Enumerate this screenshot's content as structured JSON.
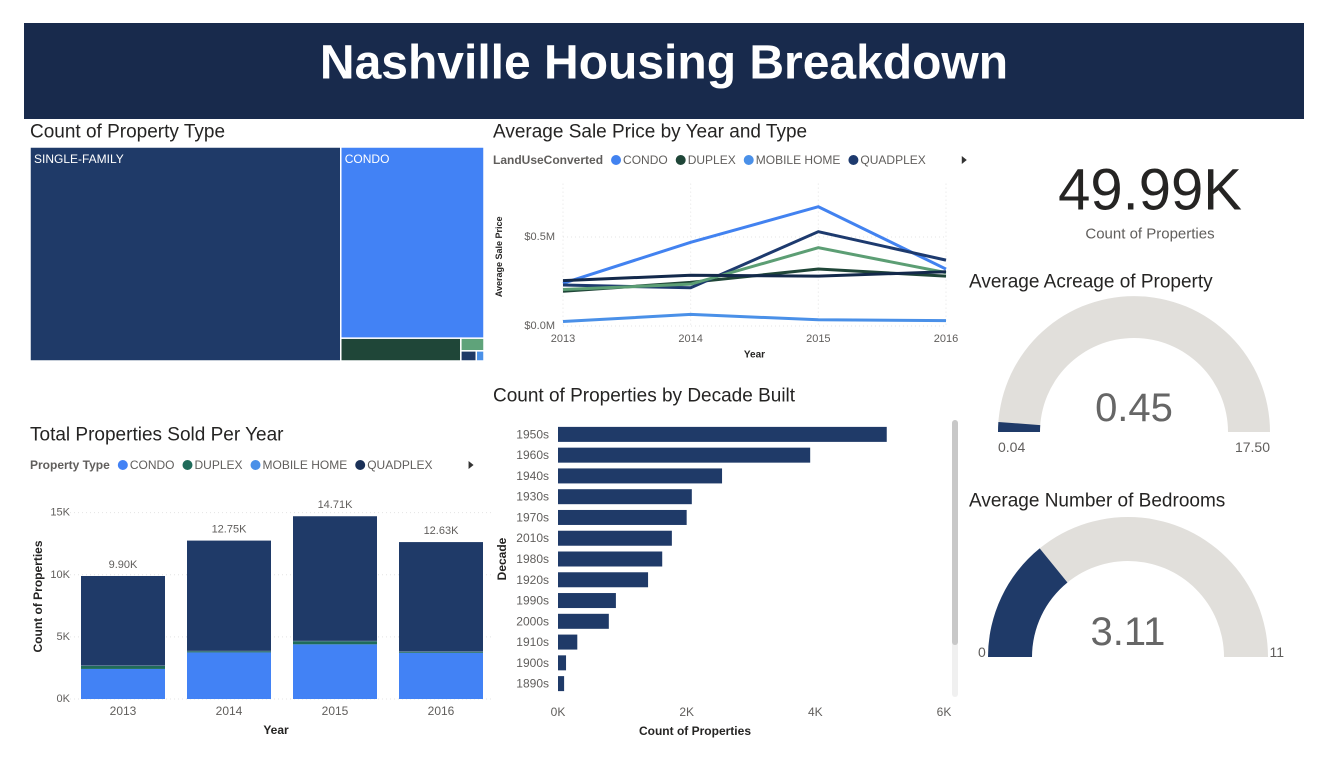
{
  "title": "Nashville Housing Breakdown",
  "chart_data": [
    {
      "type": "treemap",
      "title": "Count of Property Type",
      "categories": [
        "SINGLE-FAMILY",
        "CONDO",
        null,
        null,
        null,
        null
      ],
      "values": [
        34000,
        14000,
        1400,
        150,
        80,
        40
      ],
      "colors": [
        "#1f3a68",
        "#4282f5",
        "#1f4638",
        "#5fa37a",
        "#1f3a68",
        "#4a90e8"
      ]
    },
    {
      "type": "line",
      "title": "Average Sale Price by Year and Type",
      "legend_title": "LandUseConverted",
      "x": [
        2013,
        2014,
        2015,
        2016
      ],
      "xlim": [
        2013,
        2016
      ],
      "xticks": [
        2013,
        2014,
        2015,
        2016
      ],
      "ylim": [
        0,
        800000
      ],
      "yticks": [
        {
          "value": 0,
          "label": "$0.0M"
        },
        {
          "value": 500000,
          "label": "$0.5M"
        }
      ],
      "xlabel": "Year",
      "ylabel": "Average Sale Price",
      "grid": true,
      "series": [
        {
          "name": "CONDO",
          "color": "#4282f0",
          "values": [
            240000,
            470000,
            670000,
            320000
          ]
        },
        {
          "name": "DUPLEX",
          "color": "#1f4638",
          "values": [
            195000,
            245000,
            320000,
            280000
          ]
        },
        {
          "name": "MOBILE HOME",
          "color": "#4a90e8",
          "values": [
            25000,
            65000,
            35000,
            30000
          ]
        },
        {
          "name": "QUADPLEX",
          "color": "#1d3a6e",
          "values": [
            230000,
            215000,
            530000,
            370000
          ]
        },
        {
          "name": null,
          "color": "#5c9e74",
          "values": [
            205000,
            235000,
            440000,
            300000
          ]
        },
        {
          "name": null,
          "color": "#13294b",
          "values": [
            255000,
            285000,
            280000,
            305000
          ]
        }
      ]
    },
    {
      "type": "bar",
      "stacked": true,
      "title": "Total Properties Sold Per Year",
      "legend_title": "Property Type",
      "categories": [
        "2013",
        "2014",
        "2015",
        "2016"
      ],
      "ylim": [
        0,
        16500
      ],
      "yticks": [
        {
          "value": 0,
          "label": "0K"
        },
        {
          "value": 5000,
          "label": "5K"
        },
        {
          "value": 10000,
          "label": "10K"
        },
        {
          "value": 15000,
          "label": "15K"
        }
      ],
      "xlabel": "Year",
      "ylabel": "Count of Properties",
      "grid": true,
      "series": [
        {
          "name": "CONDO",
          "color": "#4282f5",
          "values": [
            2420,
            3750,
            4400,
            3720
          ]
        },
        {
          "name": "DUPLEX",
          "color": "#1f6b5a",
          "values": [
            250,
            90,
            250,
            80
          ]
        },
        {
          "name": "MOBILE HOME",
          "color": "#4a90e8",
          "values": [
            10,
            10,
            10,
            10
          ]
        },
        {
          "name": "QUADPLEX",
          "color": "#1b3158",
          "values": [
            30,
            30,
            30,
            30
          ]
        },
        {
          "name": null,
          "color": "#1f3a68",
          "values": [
            7190,
            8870,
            10020,
            8790
          ]
        }
      ],
      "totals": [
        9900,
        12750,
        14710,
        12630
      ],
      "total_labels": [
        "9.90K",
        "12.75K",
        "14.71K",
        "12.63K"
      ]
    },
    {
      "type": "bar",
      "horizontal": true,
      "title": "Count of Properties by Decade Built",
      "color": "#1f3a68",
      "categories": [
        "1950s",
        "1960s",
        "1940s",
        "1930s",
        "1970s",
        "2010s",
        "1980s",
        "1920s",
        "1990s",
        "2000s",
        "1910s",
        "1900s",
        "1890s"
      ],
      "values": [
        5110,
        3920,
        2550,
        2080,
        2000,
        1770,
        1620,
        1400,
        900,
        790,
        300,
        125,
        95
      ],
      "xlim": [
        0,
        6000
      ],
      "xticks": [
        {
          "value": 0,
          "label": "0K"
        },
        {
          "value": 2000,
          "label": "2K"
        },
        {
          "value": 4000,
          "label": "4K"
        },
        {
          "value": 6000,
          "label": "6K"
        }
      ],
      "xlabel": "Count of Properties",
      "ylabel": "Decade"
    },
    {
      "type": "card",
      "value": 49990,
      "value_label": "49.99K",
      "label": "Count of Properties"
    },
    {
      "type": "gauge",
      "title": "Average Acreage of Property",
      "value": 0.45,
      "ylim": [
        0.04,
        17.5
      ],
      "yticks": [
        0.04,
        {
          "value": 17.5,
          "label": "17.50"
        }
      ],
      "color": "#1f3a68",
      "track_color": "#e1dfdb"
    },
    {
      "type": "gauge",
      "title": "Average Number of Bedrooms",
      "value": 3.11,
      "ylim": [
        0,
        11
      ],
      "yticks": [
        0,
        11
      ],
      "color": "#1f3a68",
      "track_color": "#e1dfdb"
    }
  ]
}
